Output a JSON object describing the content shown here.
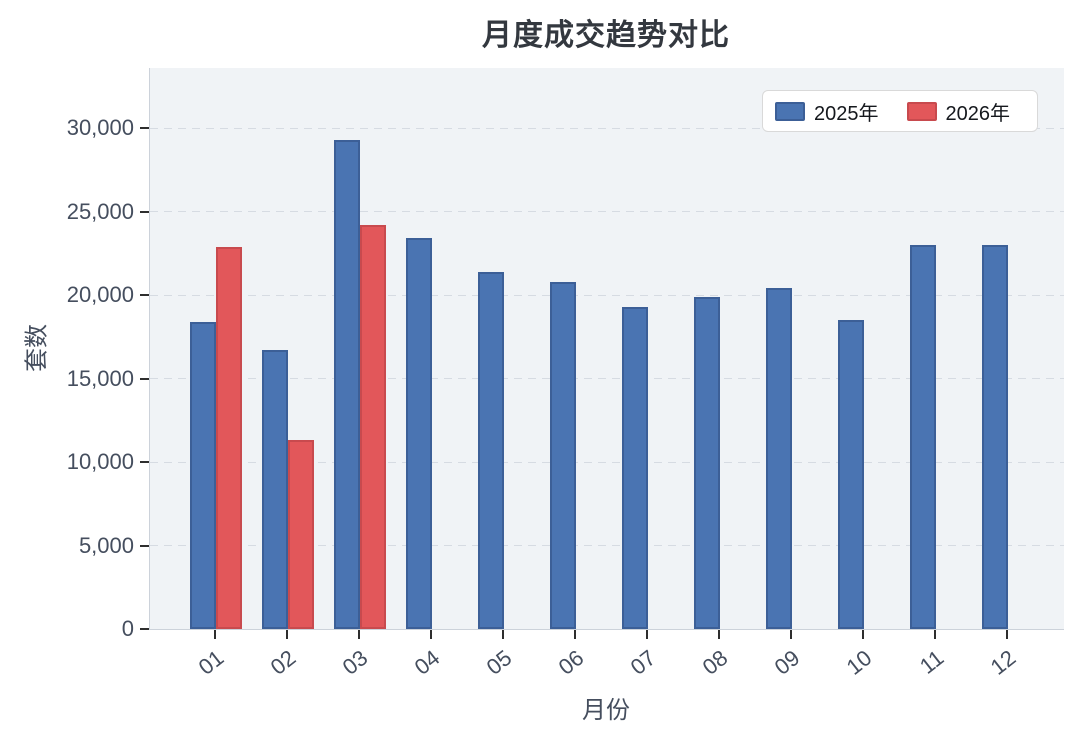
{
  "title": "月度成交趋势对比",
  "y_axis": {
    "label": "套数",
    "tick_labels": [
      "0",
      "5,000",
      "10,000",
      "15,000",
      "20,000",
      "25,000",
      "30,000"
    ],
    "tick_values": [
      0,
      5000,
      10000,
      15000,
      20000,
      25000,
      30000
    ]
  },
  "x_axis": {
    "label": "月份",
    "tick_labels": [
      "01",
      "02",
      "03",
      "04",
      "05",
      "06",
      "07",
      "08",
      "09",
      "10",
      "11",
      "12"
    ]
  },
  "legend": {
    "items": [
      {
        "label": "2025年",
        "color": "#4a74b2"
      },
      {
        "label": "2026年",
        "color": "#e2575a"
      }
    ]
  },
  "colors": {
    "series_2025_fill": "#4a74b2",
    "series_2025_edge": "#3c5f97",
    "series_2026_fill": "#e2575a",
    "series_2026_edge": "#c84a4e",
    "plot_background": "#f0f3f6",
    "gridline": "#d6dbe2",
    "axis_text": "#454e5e",
    "title_text": "#33383f"
  },
  "chart_data": {
    "type": "bar",
    "title": "月度成交趋势对比",
    "categories": [
      "01",
      "02",
      "03",
      "04",
      "05",
      "06",
      "07",
      "08",
      "09",
      "10",
      "11",
      "12"
    ],
    "series": [
      {
        "name": "2025年",
        "color": "#4a74b2",
        "edge_color": "#3c5f97",
        "values": [
          18400,
          16700,
          29300,
          23400,
          21400,
          20800,
          19300,
          19900,
          20400,
          18500,
          23000,
          23000
        ]
      },
      {
        "name": "2026年",
        "color": "#e2575a",
        "edge_color": "#c84a4e",
        "values": [
          22900,
          11300,
          24200,
          null,
          null,
          null,
          null,
          null,
          null,
          null,
          null,
          null
        ]
      }
    ],
    "xlabel": "月份",
    "ylabel": "套数",
    "ylim": [
      0,
      33600
    ],
    "yticks": [
      0,
      5000,
      10000,
      15000,
      20000,
      25000,
      30000
    ],
    "grid": true,
    "grid_style": "dashed",
    "legend_position": "upper right"
  }
}
